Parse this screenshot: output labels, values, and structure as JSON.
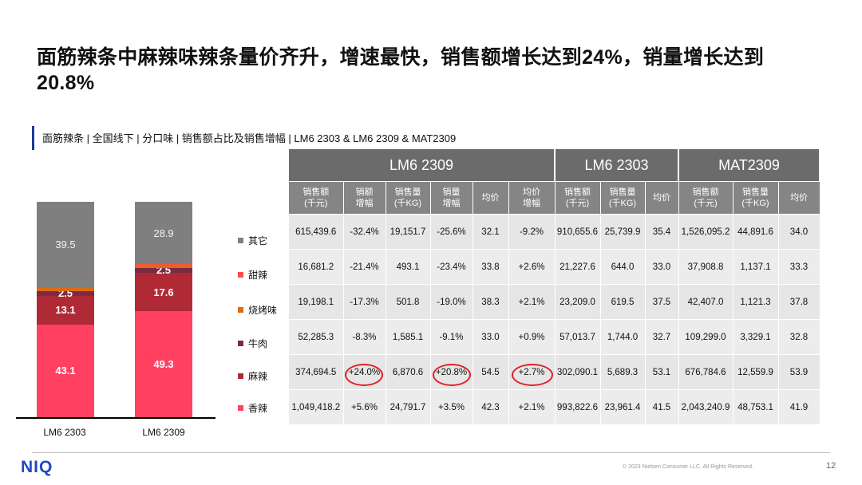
{
  "title": "面筋辣条中麻辣味辣条量价齐升，增速最快，销售额增长达到24%，销量增长达到20.8%",
  "subtitle": "面筋辣条 | 全国线下 | 分口味 | 销售额占比及销售增幅 | LM6 2303 & LM6 2309 & MAT2309",
  "colors": {
    "其它": "#7f7f7f",
    "甜辣": "#ff4d4d",
    "烧烤味": "#e06a12",
    "牛肉": "#7a2a45",
    "麻辣": "#b02a36",
    "香辣": "#ff4060"
  },
  "chart_data": {
    "type": "bar",
    "stacked": true,
    "categories": [
      "LM6 2303",
      "LM6 2309"
    ],
    "series": [
      {
        "name": "香辣",
        "values": [
          43.1,
          49.3
        ]
      },
      {
        "name": "麻辣",
        "values": [
          13.1,
          17.6
        ]
      },
      {
        "name": "牛肉",
        "values": [
          2.5,
          2.5
        ]
      },
      {
        "name": "烧烤味",
        "values": [
          1.2,
          1.2
        ]
      },
      {
        "name": "甜辣",
        "values": [
          0.6,
          0.5
        ]
      },
      {
        "name": "其它",
        "values": [
          39.5,
          28.9
        ]
      }
    ],
    "labels": [
      [
        "43.1",
        "49.3"
      ],
      [
        "13.1",
        "17.6"
      ],
      [
        "2.5",
        "2.5"
      ],
      [
        "",
        ""
      ],
      [
        "",
        ""
      ],
      [
        "39.5",
        "28.9"
      ]
    ],
    "legend": [
      "其它",
      "甜辣",
      "烧烤味",
      "牛肉",
      "麻辣",
      "香辣"
    ],
    "ylim": [
      0,
      100
    ]
  },
  "table": {
    "groups": [
      "",
      "LM6 2309",
      "LM6 2303",
      "MAT2309"
    ],
    "sub_headers": [
      "销售额\n(千元)",
      "销额\n增幅",
      "销售量\n(千KG)",
      "销量\n增幅",
      "均价",
      "均价\n增幅",
      "销售额\n(千元)",
      "销售量\n(千KG)",
      "均价",
      "销售额\n(千元)",
      "销售量\n(千KG)",
      "均价"
    ],
    "rows": [
      [
        "615,439.6",
        "-32.4%",
        "19,151.7",
        "-25.6%",
        "32.1",
        "-9.2%",
        "910,655.6",
        "25,739.9",
        "35.4",
        "1,526,095.2",
        "44,891.6",
        "34.0"
      ],
      [
        "16,681.2",
        "-21.4%",
        "493.1",
        "-23.4%",
        "33.8",
        "+2.6%",
        "21,227.6",
        "644.0",
        "33.0",
        "37,908.8",
        "1,137.1",
        "33.3"
      ],
      [
        "19,198.1",
        "-17.3%",
        "501.8",
        "-19.0%",
        "38.3",
        "+2.1%",
        "23,209.0",
        "619.5",
        "37.5",
        "42,407.0",
        "1,121.3",
        "37.8"
      ],
      [
        "52,285.3",
        "-8.3%",
        "1,585.1",
        "-9.1%",
        "33.0",
        "+0.9%",
        "57,013.7",
        "1,744.0",
        "32.7",
        "109,299.0",
        "3,329.1",
        "32.8"
      ],
      [
        "374,694.5",
        "+24.0%",
        "6,870.6",
        "+20.8%",
        "54.5",
        "+2.7%",
        "302,090.1",
        "5,689.3",
        "53.1",
        "676,784.6",
        "12,559.9",
        "53.9"
      ],
      [
        "1,049,418.2",
        "+5.6%",
        "24,791.7",
        "+3.5%",
        "42.3",
        "+2.1%",
        "993,822.6",
        "23,961.4",
        "41.5",
        "2,043,240.9",
        "48,753.1",
        "41.9"
      ]
    ]
  },
  "footer": {
    "logo": "NIQ",
    "copyright": "© 2023 Nielsen Consumer LLC. All Rights Reserved.",
    "page": "12"
  }
}
